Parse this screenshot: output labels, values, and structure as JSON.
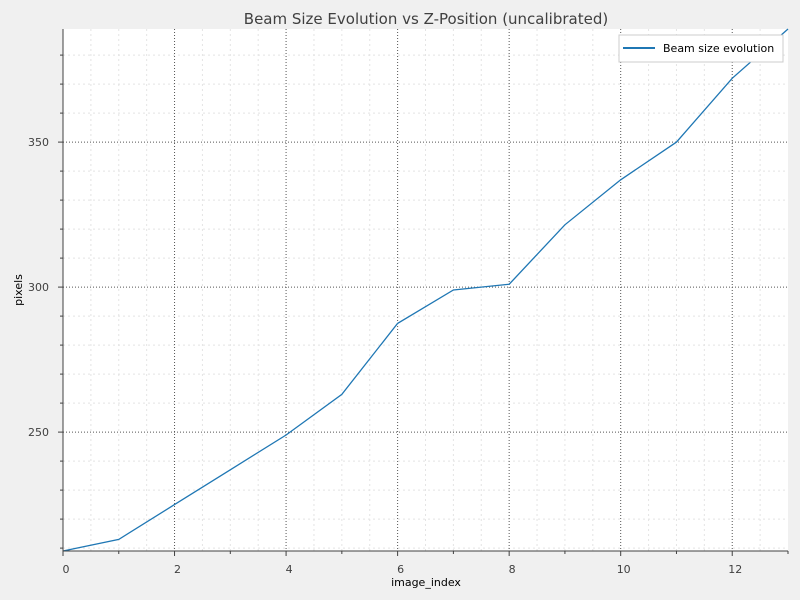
{
  "chart_data": {
    "type": "line",
    "title": "Beam Size Evolution vs Z-Position (uncalibrated)",
    "xlabel": "image_index",
    "ylabel": "pixels",
    "xlim": [
      0,
      13
    ],
    "ylim": [
      209,
      389
    ],
    "x_ticks": [
      0,
      2,
      4,
      6,
      8,
      10,
      12
    ],
    "y_ticks": [
      250,
      300,
      350
    ],
    "grid": true,
    "legend_position": "top-right",
    "series": [
      {
        "name": "Beam size evolution",
        "color": "#1f77b4",
        "x": [
          0,
          1,
          2,
          3,
          4,
          5,
          6,
          7,
          8,
          9,
          10,
          11,
          12,
          13
        ],
        "y": [
          209,
          213,
          225,
          237,
          249,
          263,
          287.5,
          299,
          301,
          321.5,
          337,
          350,
          372,
          389
        ]
      }
    ]
  }
}
